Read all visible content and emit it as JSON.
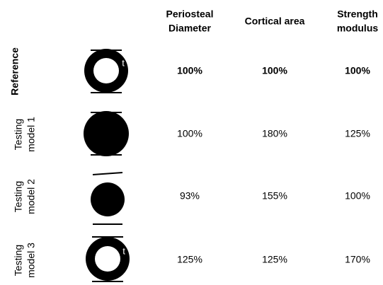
{
  "table": {
    "headers": [
      [
        "Periosteal",
        "Diameter"
      ],
      [
        "Cortical area"
      ],
      [
        "Strength",
        "modulus"
      ]
    ],
    "rows": [
      {
        "label": [
          "Reference"
        ],
        "marker": "t",
        "values": [
          "100%",
          "100%",
          "100%"
        ]
      },
      {
        "label": [
          "Testing",
          "model 1"
        ],
        "values": [
          "100%",
          "180%",
          "125%"
        ]
      },
      {
        "label": [
          "Testing",
          "model 2"
        ],
        "values": [
          "93%",
          "155%",
          "100%"
        ]
      },
      {
        "label": [
          "Testing",
          "model 3"
        ],
        "marker": "t",
        "values": [
          "125%",
          "125%",
          "170%"
        ]
      }
    ]
  }
}
